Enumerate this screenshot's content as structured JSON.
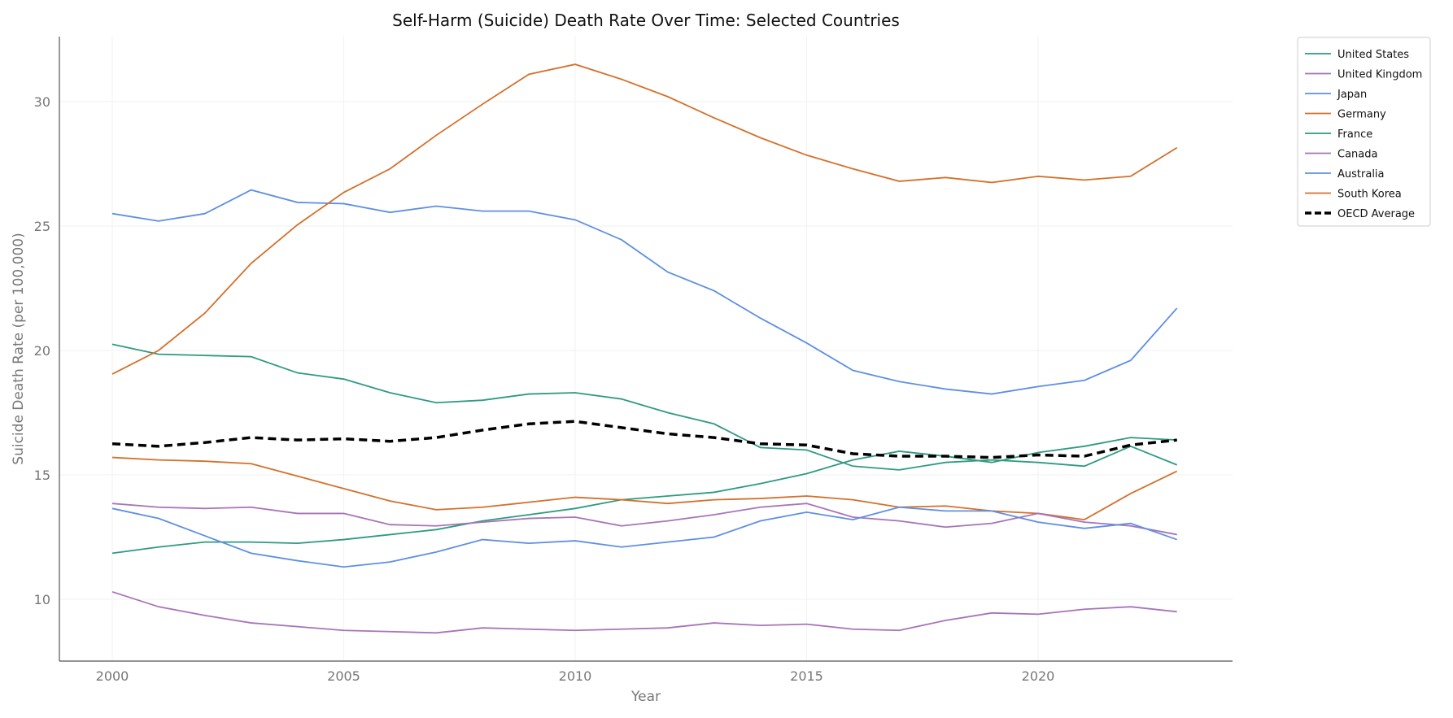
{
  "chart_data": {
    "type": "line",
    "title": "Self-Harm (Suicide) Death Rate Over Time: Selected Countries",
    "xlabel": "Year",
    "ylabel": "Suicide Death Rate (per 100,000)",
    "xlim": [
      1998.8,
      2024.2
    ],
    "ylim": [
      7.6,
      32.6
    ],
    "xticks": [
      2000,
      2005,
      2010,
      2015,
      2020
    ],
    "yticks": [
      10,
      15,
      20,
      25,
      30
    ],
    "grid": true,
    "legend_position": "outside-top-right",
    "x": [
      2000,
      2001,
      2002,
      2003,
      2004,
      2005,
      2006,
      2007,
      2008,
      2009,
      2010,
      2011,
      2012,
      2013,
      2014,
      2015,
      2016,
      2017,
      2018,
      2019,
      2020,
      2021,
      2022,
      2023
    ],
    "series": [
      {
        "name": "United States",
        "color": "#2e9a80",
        "dashed": false,
        "values": [
          11.85,
          12.1,
          12.3,
          12.3,
          12.25,
          12.4,
          12.6,
          12.8,
          13.15,
          13.4,
          13.65,
          14.0,
          14.15,
          14.3,
          14.65,
          15.05,
          15.6,
          15.95,
          15.75,
          15.5,
          15.9,
          16.15,
          16.5,
          16.4
        ]
      },
      {
        "name": "United Kingdom",
        "color": "#a774b8",
        "dashed": false,
        "values": [
          10.3,
          9.7,
          9.35,
          9.05,
          8.9,
          8.75,
          8.7,
          8.65,
          8.85,
          8.8,
          8.75,
          8.8,
          8.85,
          9.05,
          8.95,
          9.0,
          8.8,
          8.75,
          9.15,
          9.45,
          9.4,
          9.6,
          9.7,
          9.5
        ]
      },
      {
        "name": "Japan",
        "color": "#5e8fe3",
        "dashed": false,
        "values": [
          25.5,
          25.2,
          25.5,
          26.45,
          25.95,
          25.9,
          25.55,
          25.8,
          25.6,
          25.6,
          25.25,
          24.45,
          23.15,
          22.4,
          21.3,
          20.3,
          19.2,
          18.75,
          18.45,
          18.25,
          18.55,
          18.8,
          19.6,
          21.7
        ]
      },
      {
        "name": "Germany",
        "color": "#d4702a",
        "dashed": false,
        "values": [
          15.7,
          15.6,
          15.55,
          15.45,
          14.95,
          14.45,
          13.95,
          13.6,
          13.7,
          13.9,
          14.1,
          14.0,
          13.85,
          14.0,
          14.05,
          14.15,
          14.0,
          13.7,
          13.75,
          13.55,
          13.45,
          13.2,
          14.25,
          15.15
        ]
      },
      {
        "name": "France",
        "color": "#2e9a80",
        "dashed": false,
        "values": [
          20.25,
          19.85,
          19.8,
          19.75,
          19.1,
          18.85,
          18.3,
          17.9,
          18.0,
          18.25,
          18.3,
          18.05,
          17.5,
          17.05,
          16.1,
          16.0,
          15.35,
          15.2,
          15.5,
          15.6,
          15.5,
          15.35,
          16.15,
          15.4
        ]
      },
      {
        "name": "Canada",
        "color": "#a774b8",
        "dashed": false,
        "values": [
          13.85,
          13.7,
          13.65,
          13.7,
          13.45,
          13.45,
          13.0,
          12.95,
          13.1,
          13.25,
          13.3,
          12.95,
          13.15,
          13.4,
          13.7,
          13.85,
          13.3,
          13.15,
          12.9,
          13.05,
          13.45,
          13.1,
          12.95,
          12.6
        ]
      },
      {
        "name": "Australia",
        "color": "#5e8fe3",
        "dashed": false,
        "values": [
          13.65,
          13.25,
          12.55,
          11.85,
          11.55,
          11.3,
          11.5,
          11.9,
          12.4,
          12.25,
          12.35,
          12.1,
          12.3,
          12.5,
          13.15,
          13.5,
          13.2,
          13.7,
          13.55,
          13.55,
          13.1,
          12.85,
          13.05,
          12.4
        ]
      },
      {
        "name": "South Korea",
        "color": "#d4702a",
        "dashed": false,
        "values": [
          19.05,
          20.0,
          21.5,
          23.5,
          25.05,
          26.35,
          27.3,
          28.65,
          29.9,
          31.1,
          31.5,
          30.9,
          30.2,
          29.35,
          28.55,
          27.85,
          27.3,
          26.8,
          26.95,
          26.75,
          27.0,
          26.85,
          27.0,
          28.15
        ]
      },
      {
        "name": "OECD Average",
        "color": "#000000",
        "dashed": true,
        "values": [
          16.25,
          16.15,
          16.3,
          16.5,
          16.4,
          16.45,
          16.35,
          16.5,
          16.8,
          17.05,
          17.15,
          16.9,
          16.65,
          16.5,
          16.25,
          16.2,
          15.85,
          15.75,
          15.75,
          15.7,
          15.8,
          15.75,
          16.2,
          16.4
        ]
      }
    ]
  }
}
